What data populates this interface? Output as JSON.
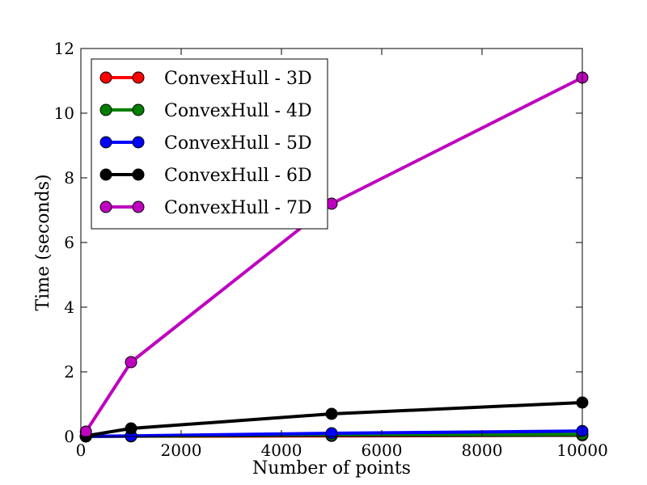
{
  "chart_data": {
    "type": "line",
    "title": "",
    "xlabel": "Number of points",
    "ylabel": "Time (seconds)",
    "xlim": [
      0,
      10000
    ],
    "ylim": [
      0,
      12
    ],
    "x_ticks": [
      0,
      2000,
      4000,
      6000,
      8000,
      10000
    ],
    "y_ticks": [
      0,
      2,
      4,
      6,
      8,
      10,
      12
    ],
    "grid": false,
    "legend_position": "top-left",
    "x": [
      100,
      1000,
      5000,
      10000
    ],
    "series": [
      {
        "name": "ConvexHull - 3D",
        "color": "#ff0000",
        "values": [
          0.002,
          0.005,
          0.02,
          0.04
        ]
      },
      {
        "name": "ConvexHull - 4D",
        "color": "#008000",
        "values": [
          0.003,
          0.01,
          0.04,
          0.07
        ]
      },
      {
        "name": "ConvexHull - 5D",
        "color": "#0000ff",
        "values": [
          0.005,
          0.02,
          0.1,
          0.17
        ]
      },
      {
        "name": "ConvexHull - 6D",
        "color": "#000000",
        "values": [
          0.02,
          0.25,
          0.7,
          1.05
        ]
      },
      {
        "name": "ConvexHull - 7D",
        "color": "#bf00bf",
        "values": [
          0.15,
          2.3,
          7.2,
          11.1
        ]
      }
    ]
  }
}
